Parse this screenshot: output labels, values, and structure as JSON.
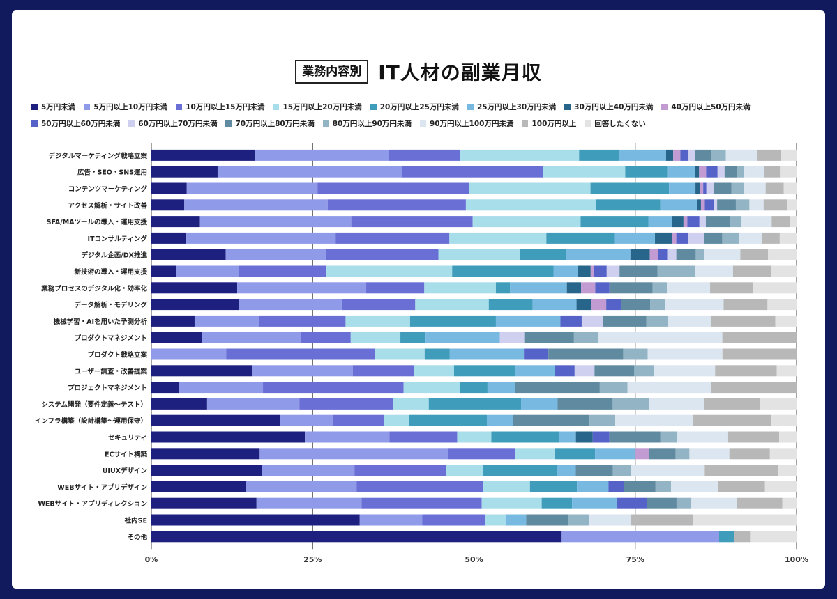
{
  "title": {
    "tag": "業務内容別",
    "main": "IT人材の副業月収"
  },
  "chart_data": {
    "type": "bar",
    "orientation": "horizontal",
    "stacked": true,
    "xlim": [
      0,
      100
    ],
    "xticks": [
      "0%",
      "25%",
      "50%",
      "75%",
      "100%"
    ],
    "legend_position": "top",
    "series_names": [
      "5万円未満",
      "5万円以上10万円未満",
      "10万円以上15万円未満",
      "15万円以上20万円未満",
      "20万円以上25万円未満",
      "25万円以上30万円未満",
      "30万円以上40万円未満",
      "40万円以上50万円未満",
      "50万円以上60万円未満",
      "60万円以上70万円未満",
      "70万円以上80万円未満",
      "80万円以上90万円未満",
      "90万円以上100万円未満",
      "100万円以上",
      "回答したくない"
    ],
    "colors": [
      "#1e2080",
      "#8f9ae8",
      "#6a6fd6",
      "#a8ddea",
      "#3f9dbb",
      "#78b9e2",
      "#27658a",
      "#c39bd3",
      "#5563c9",
      "#cfd0f0",
      "#5f8aa0",
      "#93b4c4",
      "#dbe6f0",
      "#b8b8b8",
      "#e3e3e3"
    ],
    "categories": [
      "デジタルマーケティング戦略立案",
      "広告・SEO・SNS運用",
      "コンテンツマーケティング",
      "アクセス解析・サイト改善",
      "SFA/MAツールの導入・運用支援",
      "ITコンサルティング",
      "デジタル企画/DX推進",
      "新技術の導入・運用支援",
      "業務プロセスのデジタル化・効率化",
      "データ解析・モデリング",
      "機械学習・AIを用いた予測分析",
      "プロダクトマネジメント",
      "プロダクト戦略立案",
      "ユーザー調査・改善提案",
      "プロジェクトマネジメント",
      "システム開発（要件定義〜テスト）",
      "インフラ構築（設計構築〜運用保守）",
      "セキュリティ",
      "ECサイト構築",
      "UIUXデザイン",
      "WEBサイト・アプリデザイン",
      "WEBサイト・アプリディレクション",
      "社内SE",
      "その他"
    ],
    "values": [
      [
        16.0,
        20.6,
        11.0,
        18.3,
        6.1,
        7.3,
        1.1,
        1.1,
        1.2,
        1.1,
        2.4,
        2.3,
        4.8,
        3.7,
        2.4
      ],
      [
        10.4,
        29.0,
        22.1,
        12.9,
        6.6,
        4.4,
        0.6,
        1.1,
        1.8,
        1.1,
        1.9,
        1.2,
        3.1,
        2.5,
        2.6
      ],
      [
        5.5,
        20.3,
        23.5,
        18.9,
        12.2,
        4.1,
        0.7,
        0.5,
        0.5,
        1.2,
        2.7,
        1.9,
        3.4,
        2.8,
        2.0
      ],
      [
        5.1,
        22.2,
        21.4,
        20.1,
        10.0,
        5.7,
        0.6,
        0.6,
        1.4,
        0.5,
        2.9,
        2.1,
        2.2,
        3.6,
        1.5
      ],
      [
        7.6,
        23.7,
        19.0,
        16.9,
        10.6,
        3.7,
        1.8,
        0.6,
        1.9,
        1.0,
        3.8,
        1.8,
        4.7,
        2.9,
        1.0
      ],
      [
        5.4,
        23.1,
        17.6,
        15.0,
        10.6,
        6.2,
        2.6,
        0.7,
        1.8,
        2.5,
        2.8,
        2.6,
        3.6,
        2.7,
        2.6
      ],
      [
        11.5,
        15.5,
        17.4,
        12.6,
        7.1,
        10.0,
        3.0,
        1.3,
        1.4,
        1.4,
        3.0,
        1.3,
        5.6,
        4.3,
        4.4
      ],
      [
        3.9,
        9.8,
        13.6,
        19.6,
        15.8,
        3.8,
        2.0,
        0.5,
        2.0,
        2.0,
        5.9,
        5.9,
        5.9,
        5.9,
        4.0
      ],
      [
        13.3,
        20.0,
        9.0,
        11.1,
        2.2,
        8.8,
        2.2,
        2.2,
        2.2,
        0.0,
        6.7,
        2.2,
        6.7,
        6.7,
        6.7
      ],
      [
        13.6,
        15.9,
        11.4,
        11.4,
        6.8,
        6.8,
        2.3,
        2.3,
        2.3,
        0.0,
        4.5,
        2.3,
        9.1,
        6.8,
        4.5
      ],
      [
        6.7,
        10.0,
        13.4,
        10.0,
        13.3,
        10.0,
        0.0,
        0.0,
        3.3,
        3.3,
        6.7,
        3.3,
        6.7,
        10.0,
        3.3
      ],
      [
        7.8,
        15.4,
        7.7,
        7.7,
        3.9,
        11.5,
        0.0,
        0.0,
        0.0,
        3.8,
        7.7,
        3.8,
        19.2,
        11.5,
        0.0
      ],
      [
        0.0,
        11.6,
        23.1,
        7.7,
        3.9,
        11.5,
        0.0,
        0.0,
        3.8,
        0.0,
        11.6,
        3.8,
        11.6,
        11.5,
        0.0
      ],
      [
        15.7,
        15.7,
        9.6,
        6.2,
        9.5,
        6.2,
        0.0,
        0.0,
        3.1,
        3.1,
        6.2,
        3.1,
        9.5,
        9.6,
        3.1
      ],
      [
        4.3,
        13.0,
        21.8,
        8.7,
        4.3,
        4.3,
        0.0,
        0.0,
        0.0,
        0.0,
        13.1,
        4.3,
        13.0,
        13.2,
        0.0
      ],
      [
        8.7,
        14.4,
        14.6,
        5.6,
        14.4,
        5.7,
        0.0,
        0.0,
        0.0,
        0.0,
        8.6,
        5.7,
        8.6,
        8.7,
        5.7
      ],
      [
        20.0,
        8.1,
        7.9,
        4.0,
        12.0,
        4.0,
        0.0,
        0.0,
        0.0,
        0.0,
        11.9,
        4.0,
        12.1,
        12.0,
        4.0
      ],
      [
        23.8,
        13.1,
        10.5,
        5.3,
        10.5,
        2.6,
        2.6,
        0.0,
        2.6,
        0.0,
        7.9,
        2.6,
        7.9,
        7.9,
        2.7
      ],
      [
        17.9,
        31.1,
        11.1,
        6.6,
        6.6,
        6.7,
        0.0,
        2.2,
        0.0,
        0.0,
        4.4,
        2.3,
        6.6,
        6.7,
        4.4
      ],
      [
        18.2,
        15.2,
        15.1,
        6.1,
        12.1,
        3.1,
        0.0,
        0.0,
        0.0,
        0.0,
        6.1,
        3.0,
        12.1,
        12.1,
        3.0
      ],
      [
        14.7,
        17.2,
        19.6,
        7.3,
        7.3,
        4.9,
        0.0,
        0.0,
        2.4,
        0.0,
        4.9,
        2.4,
        7.3,
        7.3,
        4.9
      ],
      [
        16.3,
        16.3,
        18.6,
        9.3,
        4.7,
        6.9,
        0.0,
        0.0,
        4.7,
        0.0,
        4.6,
        2.3,
        7.0,
        7.1,
        2.2
      ],
      [
        32.3,
        9.7,
        9.7,
        3.2,
        0.0,
        3.2,
        0.0,
        0.0,
        0.0,
        0.0,
        6.5,
        3.2,
        6.5,
        9.7,
        16.0
      ],
      [
        63.6,
        24.4,
        0.0,
        0.0,
        2.3,
        0.0,
        0.0,
        0.0,
        0.0,
        0.0,
        0.0,
        0.0,
        0.0,
        2.5,
        7.2
      ]
    ]
  }
}
